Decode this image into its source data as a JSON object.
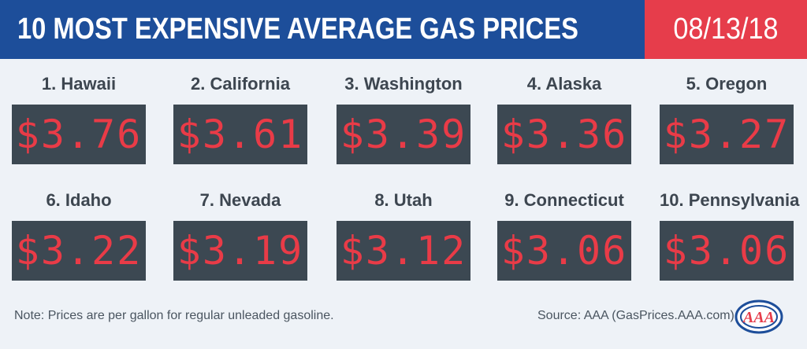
{
  "header": {
    "title": "10 MOST EXPENSIVE AVERAGE GAS PRICES",
    "date": "08/13/18"
  },
  "states": [
    {
      "label": "1. Hawaii",
      "price": "$3.76"
    },
    {
      "label": "2. California",
      "price": "$3.61"
    },
    {
      "label": "3. Washington",
      "price": "$3.39"
    },
    {
      "label": "4. Alaska",
      "price": "$3.36"
    },
    {
      "label": "5. Oregon",
      "price": "$3.27"
    },
    {
      "label": "6. Idaho",
      "price": "$3.22"
    },
    {
      "label": "7. Nevada",
      "price": "$3.19"
    },
    {
      "label": "8. Utah",
      "price": "$3.12"
    },
    {
      "label": "9. Connecticut",
      "price": "$3.06"
    },
    {
      "label": "10. Pennsylvania",
      "price": "$3.06"
    }
  ],
  "footer": {
    "note": "Note: Prices are per gallon for regular unleaded gasoline.",
    "source": "Source: AAA (GasPrices.AAA.com)",
    "logo_text": "AAA"
  },
  "colors": {
    "header_blue": "#1d4e9a",
    "date_red": "#e63d4b",
    "display_bg": "#3c4852",
    "digit_red": "#e93b47"
  }
}
